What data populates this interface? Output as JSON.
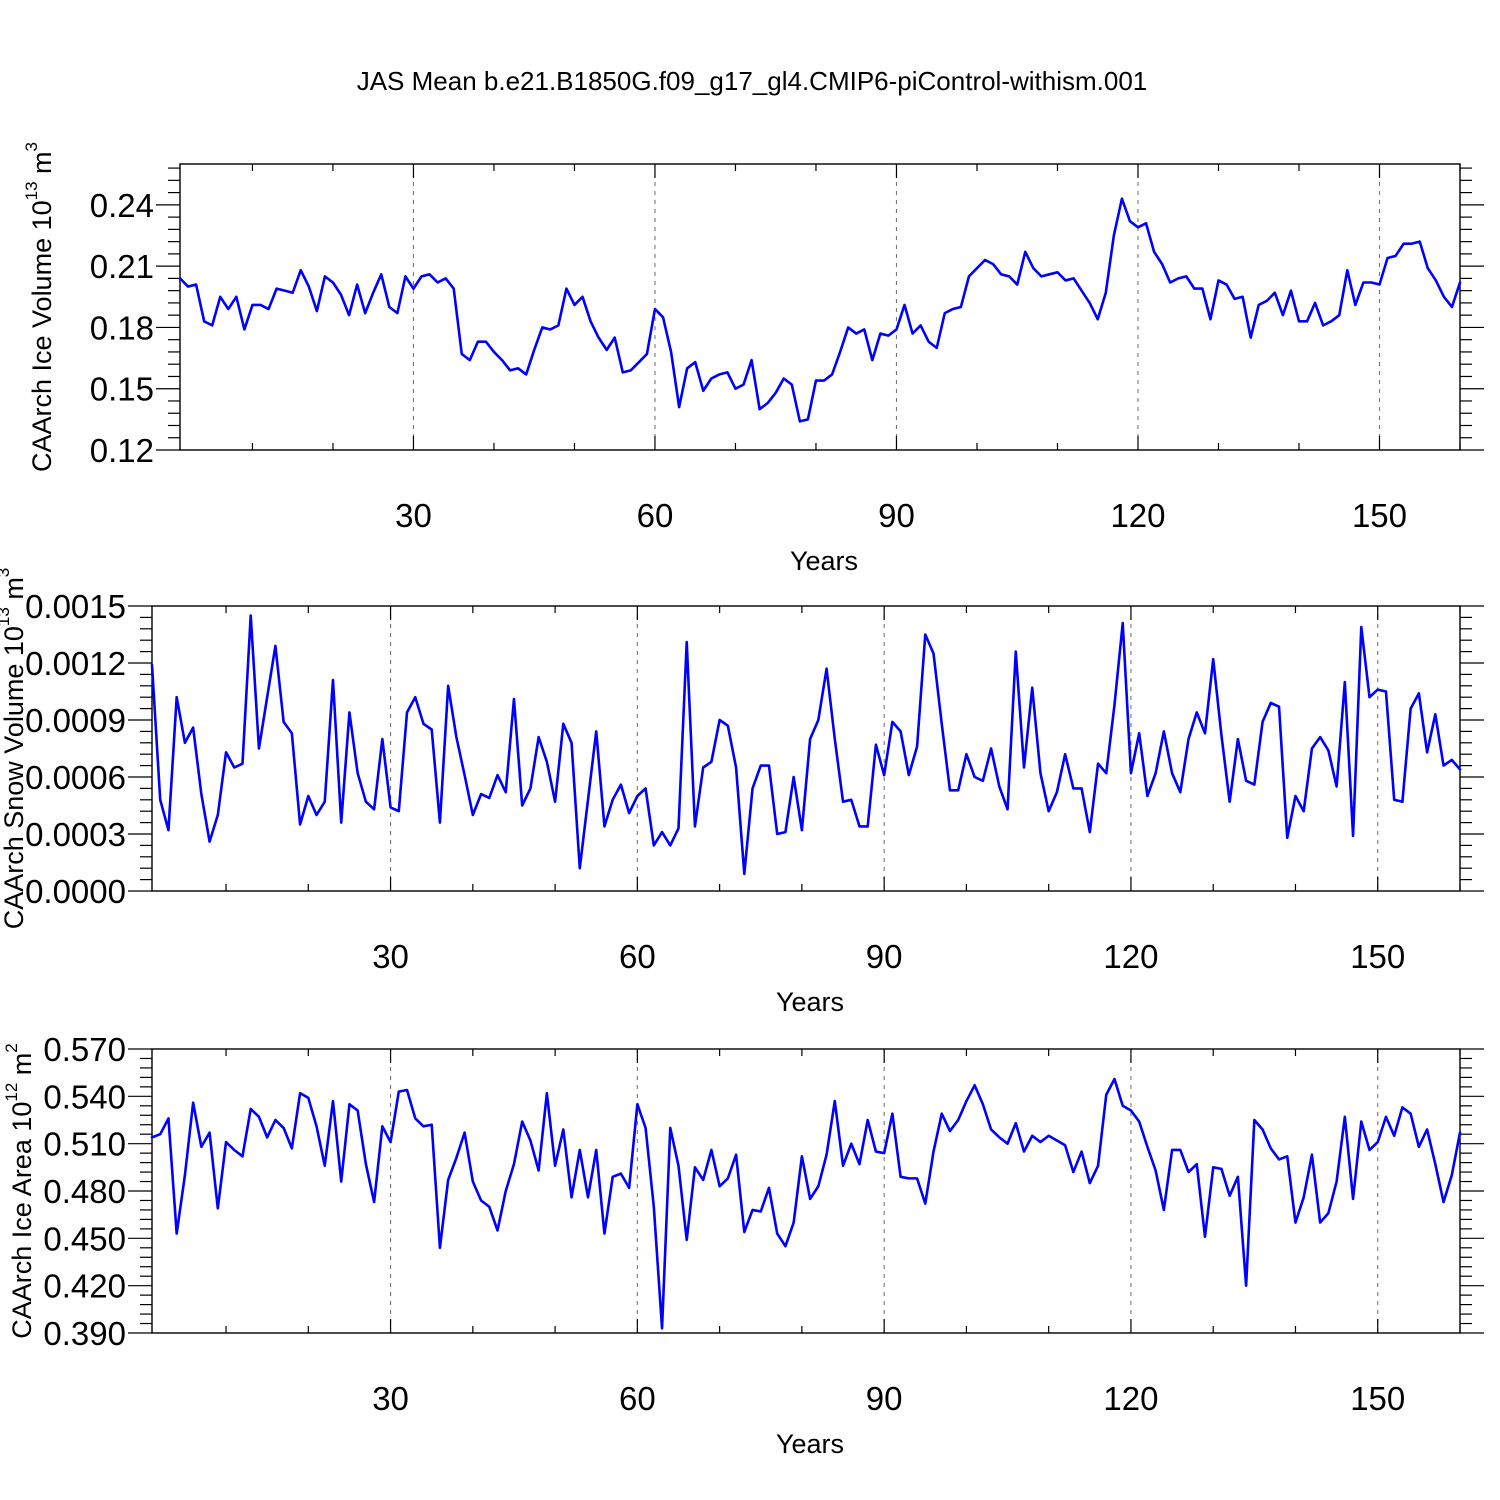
{
  "title": "JAS Mean b.e21.B1850G.f09_g17_gl4.CMIP6-piControl-withism.001",
  "colors": {
    "series": "#0000ff",
    "axes": "#000000",
    "grid": "#777777"
  },
  "chart_data": [
    {
      "type": "line",
      "ylabel": "CAArch Ice Volume 10",
      "ylabel_exp": "13",
      "ylabel_unit": " m",
      "ylabel_unit_exp": "3",
      "xlabel": "Years",
      "xlim": [
        1,
        160
      ],
      "ylim": [
        0.12,
        0.26
      ],
      "xticks": [
        30,
        60,
        90,
        120,
        150
      ],
      "yticks": [
        "0.12",
        "0.15",
        "0.18",
        "0.21",
        "0.24"
      ],
      "grid": "vertical dashed at major x ticks",
      "y": [
        0.204,
        0.2,
        0.201,
        0.183,
        0.181,
        0.195,
        0.189,
        0.195,
        0.179,
        0.191,
        0.191,
        0.189,
        0.199,
        0.198,
        0.197,
        0.208,
        0.2,
        0.188,
        0.205,
        0.202,
        0.196,
        0.186,
        0.201,
        0.187,
        0.197,
        0.206,
        0.19,
        0.187,
        0.205,
        0.199,
        0.205,
        0.206,
        0.202,
        0.204,
        0.199,
        0.167,
        0.164,
        0.173,
        0.173,
        0.168,
        0.164,
        0.159,
        0.16,
        0.157,
        0.169,
        0.18,
        0.179,
        0.181,
        0.199,
        0.191,
        0.195,
        0.183,
        0.175,
        0.169,
        0.175,
        0.158,
        0.159,
        0.163,
        0.167,
        0.189,
        0.185,
        0.168,
        0.141,
        0.16,
        0.163,
        0.149,
        0.155,
        0.157,
        0.158,
        0.15,
        0.152,
        0.164,
        0.14,
        0.143,
        0.148,
        0.155,
        0.152,
        0.134,
        0.135,
        0.154,
        0.154,
        0.157,
        0.168,
        0.18,
        0.177,
        0.179,
        0.164,
        0.177,
        0.176,
        0.179,
        0.191,
        0.177,
        0.181,
        0.173,
        0.17,
        0.187,
        0.189,
        0.19,
        0.205,
        0.209,
        0.213,
        0.211,
        0.206,
        0.205,
        0.201,
        0.217,
        0.209,
        0.205,
        0.206,
        0.207,
        0.203,
        0.204,
        0.198,
        0.192,
        0.184,
        0.197,
        0.225,
        0.243,
        0.232,
        0.229,
        0.231,
        0.217,
        0.211,
        0.202,
        0.204,
        0.205,
        0.199,
        0.199,
        0.184,
        0.203,
        0.201,
        0.194,
        0.195,
        0.175,
        0.191,
        0.193,
        0.197,
        0.186,
        0.198,
        0.183,
        0.183,
        0.192,
        0.181,
        0.183,
        0.186,
        0.208,
        0.191,
        0.202,
        0.202,
        0.201,
        0.214,
        0.215,
        0.221,
        0.221,
        0.222,
        0.209,
        0.203,
        0.195,
        0.19,
        0.202
      ]
    },
    {
      "type": "line",
      "ylabel": "CAArch Snow Volume 10",
      "ylabel_exp": "13",
      "ylabel_unit": " m",
      "ylabel_unit_exp": "3",
      "xlabel": "Years",
      "xlim": [
        1,
        160
      ],
      "ylim": [
        0.0,
        0.0015
      ],
      "xticks": [
        30,
        60,
        90,
        120,
        150
      ],
      "yticks": [
        "0.0000",
        "0.0003",
        "0.0006",
        "0.0009",
        "0.0012",
        "0.0015"
      ],
      "grid": "vertical dashed at major x ticks",
      "y": [
        0.00119,
        0.00048,
        0.00032,
        0.00102,
        0.00078,
        0.00086,
        0.00051,
        0.00026,
        0.0004,
        0.00073,
        0.00065,
        0.00067,
        0.00145,
        0.00075,
        0.00102,
        0.00129,
        0.00089,
        0.00083,
        0.00035,
        0.0005,
        0.0004,
        0.00047,
        0.00111,
        0.00036,
        0.00094,
        0.00062,
        0.00047,
        0.00043,
        0.0008,
        0.00044,
        0.00042,
        0.00094,
        0.00102,
        0.00088,
        0.00085,
        0.00036,
        0.00108,
        0.00081,
        0.00061,
        0.0004,
        0.00051,
        0.00049,
        0.00061,
        0.00052,
        0.00101,
        0.00045,
        0.00054,
        0.00081,
        0.00068,
        0.00047,
        0.00088,
        0.00078,
        0.00012,
        0.00048,
        0.00084,
        0.00034,
        0.00048,
        0.00056,
        0.00041,
        0.0005,
        0.00054,
        0.00024,
        0.00031,
        0.00024,
        0.00033,
        0.00131,
        0.00034,
        0.00065,
        0.00068,
        0.0009,
        0.00087,
        0.00065,
        9e-05,
        0.00054,
        0.00066,
        0.00066,
        0.0003,
        0.00031,
        0.0006,
        0.00032,
        0.0008,
        0.0009,
        0.00117,
        0.0008,
        0.00047,
        0.00048,
        0.00034,
        0.00034,
        0.00077,
        0.00061,
        0.00089,
        0.00084,
        0.00061,
        0.00076,
        0.00135,
        0.00125,
        0.00088,
        0.00053,
        0.00053,
        0.00072,
        0.0006,
        0.00058,
        0.00075,
        0.00055,
        0.00043,
        0.00126,
        0.00065,
        0.00107,
        0.00062,
        0.00042,
        0.00052,
        0.00072,
        0.00054,
        0.00054,
        0.00031,
        0.00067,
        0.00062,
        0.00098,
        0.00141,
        0.00062,
        0.00083,
        0.0005,
        0.00062,
        0.00084,
        0.00062,
        0.00052,
        0.0008,
        0.00094,
        0.00083,
        0.00122,
        0.00082,
        0.00047,
        0.0008,
        0.00058,
        0.00056,
        0.00089,
        0.00099,
        0.00097,
        0.00028,
        0.0005,
        0.00042,
        0.00075,
        0.00081,
        0.00074,
        0.00055,
        0.0011,
        0.00029,
        0.00139,
        0.00102,
        0.00106,
        0.00105,
        0.00048,
        0.00047,
        0.00096,
        0.00104,
        0.00073,
        0.00093,
        0.00066,
        0.00069,
        0.00064
      ]
    },
    {
      "type": "line",
      "ylabel": "CAArch Ice Area 10",
      "ylabel_exp": "12",
      "ylabel_unit": " m",
      "ylabel_unit_exp": "2",
      "xlabel": "Years",
      "xlim": [
        1,
        160
      ],
      "ylim": [
        0.39,
        0.57
      ],
      "xticks": [
        30,
        60,
        90,
        120,
        150
      ],
      "yticks": [
        "0.390",
        "0.420",
        "0.450",
        "0.480",
        "0.510",
        "0.540",
        "0.570"
      ],
      "grid": "vertical dashed at major x ticks",
      "y": [
        0.514,
        0.516,
        0.526,
        0.453,
        0.49,
        0.536,
        0.508,
        0.517,
        0.469,
        0.511,
        0.506,
        0.502,
        0.532,
        0.527,
        0.514,
        0.525,
        0.52,
        0.507,
        0.542,
        0.539,
        0.521,
        0.496,
        0.537,
        0.486,
        0.535,
        0.531,
        0.497,
        0.473,
        0.521,
        0.511,
        0.543,
        0.544,
        0.526,
        0.521,
        0.522,
        0.444,
        0.487,
        0.501,
        0.517,
        0.486,
        0.474,
        0.47,
        0.455,
        0.48,
        0.497,
        0.524,
        0.512,
        0.493,
        0.542,
        0.496,
        0.519,
        0.476,
        0.506,
        0.476,
        0.506,
        0.453,
        0.489,
        0.491,
        0.482,
        0.535,
        0.52,
        0.47,
        0.393,
        0.52,
        0.496,
        0.449,
        0.495,
        0.487,
        0.506,
        0.483,
        0.488,
        0.503,
        0.454,
        0.468,
        0.467,
        0.482,
        0.453,
        0.445,
        0.46,
        0.502,
        0.475,
        0.483,
        0.503,
        0.537,
        0.496,
        0.51,
        0.497,
        0.525,
        0.505,
        0.504,
        0.529,
        0.489,
        0.488,
        0.488,
        0.472,
        0.505,
        0.529,
        0.518,
        0.525,
        0.537,
        0.547,
        0.535,
        0.519,
        0.514,
        0.51,
        0.523,
        0.505,
        0.515,
        0.511,
        0.515,
        0.512,
        0.509,
        0.492,
        0.505,
        0.485,
        0.496,
        0.541,
        0.551,
        0.534,
        0.531,
        0.524,
        0.508,
        0.493,
        0.468,
        0.506,
        0.506,
        0.492,
        0.497,
        0.451,
        0.495,
        0.494,
        0.477,
        0.489,
        0.42,
        0.525,
        0.519,
        0.507,
        0.5,
        0.502,
        0.46,
        0.476,
        0.503,
        0.46,
        0.466,
        0.486,
        0.527,
        0.475,
        0.524,
        0.506,
        0.511,
        0.527,
        0.515,
        0.533,
        0.529,
        0.508,
        0.519,
        0.497,
        0.473,
        0.49,
        0.517
      ]
    }
  ]
}
